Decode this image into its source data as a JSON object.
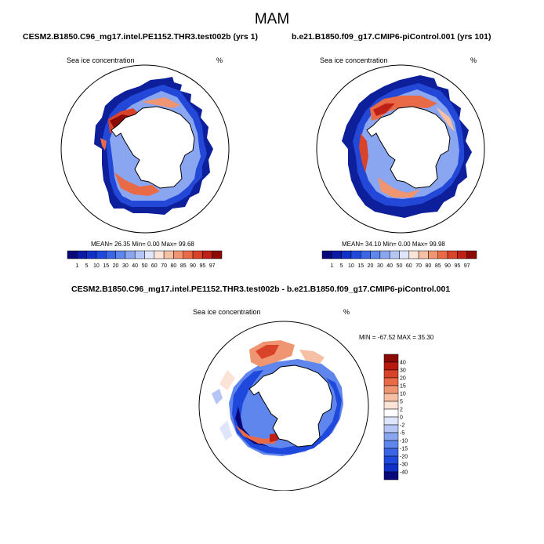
{
  "figure": {
    "title": "MAM",
    "panel_a": {
      "title": "CESM2.B1850.C96_mg17.intel.PE1152.THR3.test002b (yrs 1)",
      "variable": "Sea ice concentration",
      "units": "%",
      "stats": "MEAN=  26.35  Min=   0.00  Max=  99.68"
    },
    "panel_b": {
      "title": "b.e21.B1850.f09_g17.CMIP6-piControl.001 (yrs 101)",
      "variable": "Sea ice concentration",
      "units": "%",
      "stats": "MEAN=  34.10  Min=   0.00  Max=  99.98"
    },
    "panel_c": {
      "title": "CESM2.B1850.C96_mg17.intel.PE1152.THR3.test002b - b.e21.B1850.f09_g17.CMIP6-piControl.001",
      "variable": "Sea ice concentration",
      "units": "%",
      "stats": "MIN = -67.52 MAX =  35.30"
    },
    "colorbar_abs": {
      "labels": [
        "1",
        "5",
        "10",
        "15",
        "20",
        "30",
        "40",
        "50",
        "60",
        "70",
        "80",
        "85",
        "90",
        "95",
        "97"
      ],
      "colors": [
        "#08087a",
        "#0a1aa6",
        "#1030c8",
        "#1f48dd",
        "#3a66e6",
        "#5f86ec",
        "#8aa6f1",
        "#b5c6f6",
        "#dfe6fb",
        "#fbe3d8",
        "#f6c0a4",
        "#ef9572",
        "#e86a47",
        "#d9432a",
        "#bf2116",
        "#8c0a06"
      ]
    },
    "colorbar_diff": {
      "labels": [
        "40",
        "30",
        "20",
        "15",
        "10",
        "5",
        "2",
        "0",
        "-2",
        "-5",
        "-10",
        "-15",
        "-20",
        "-30",
        "-40"
      ],
      "colors": [
        "#8c0a06",
        "#b81a10",
        "#d9432a",
        "#e86a47",
        "#ef9572",
        "#f6c0a4",
        "#fbe3d8",
        "#ffffff",
        "#dfe6fb",
        "#b5c6f6",
        "#8aa6f1",
        "#5f86ec",
        "#3a66e6",
        "#1f48dd",
        "#1030c8",
        "#08087a"
      ]
    }
  }
}
